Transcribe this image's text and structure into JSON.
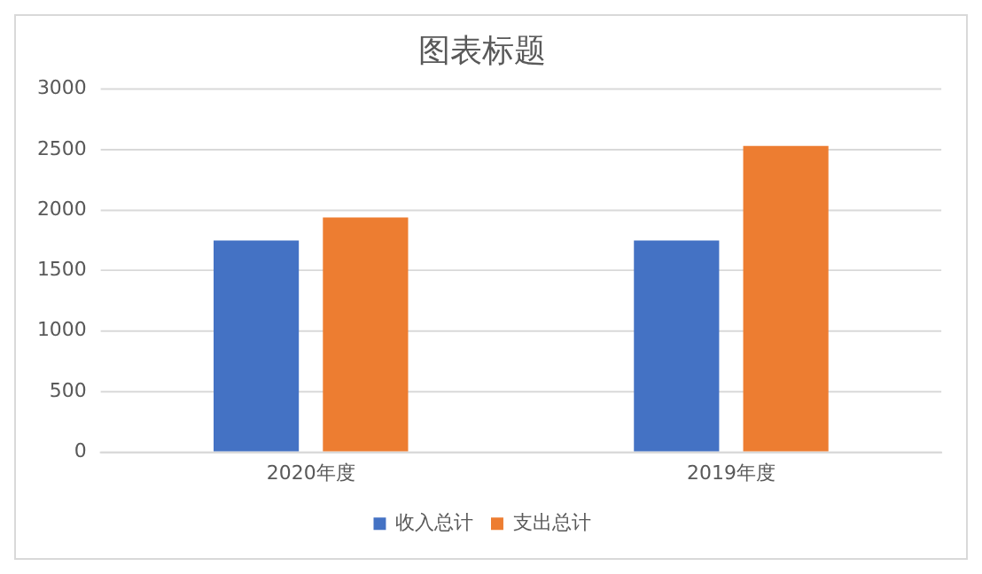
{
  "chart_data": {
    "type": "bar",
    "title": "图表标题",
    "categories": [
      "2020年度",
      "2019年度"
    ],
    "series": [
      {
        "name": "收入总计",
        "color": "#4472c4",
        "values": [
          1750,
          1750
        ]
      },
      {
        "name": "支出总计",
        "color": "#ed7d31",
        "values": [
          1940,
          2530
        ]
      }
    ],
    "ylim": [
      0,
      3000
    ],
    "yticks": [
      0,
      500,
      1000,
      1500,
      2000,
      2500,
      3000
    ],
    "grid": "y",
    "legend": "bottom"
  }
}
